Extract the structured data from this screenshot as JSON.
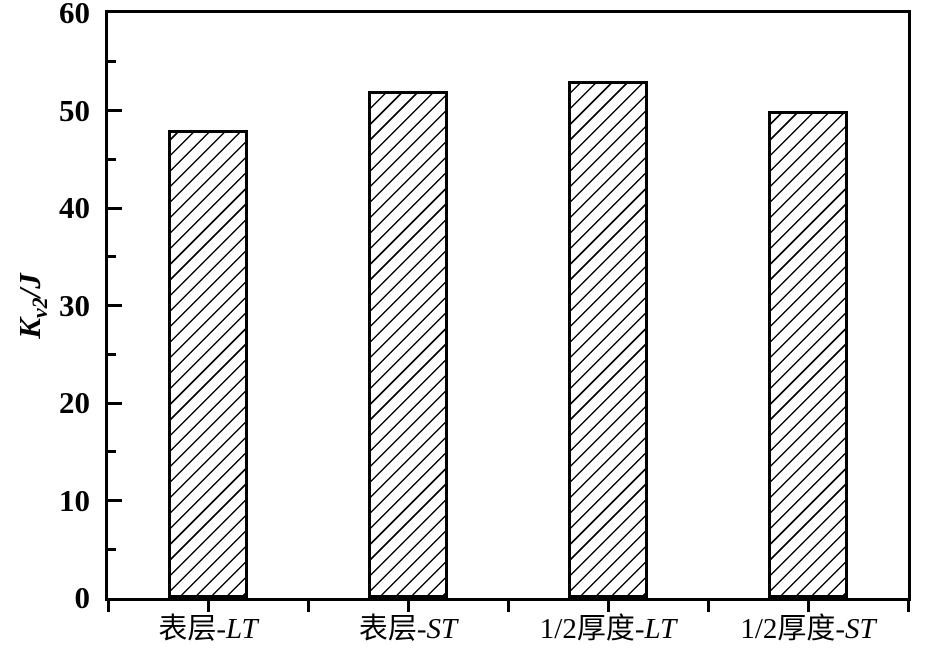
{
  "figure": {
    "background": "#ffffff",
    "axis_color": "#000000"
  },
  "chart_data": {
    "type": "bar",
    "title": "",
    "xlabel": "",
    "ylabel": "Kv2/J",
    "ylabel_parts": {
      "main": "K",
      "sub": "v2",
      "rest": "/J"
    },
    "categories": [
      "表层-LT",
      "表层-ST",
      "1/2厚度-LT",
      "1/2厚度-ST"
    ],
    "category_parts": [
      {
        "prefix": "表层-",
        "suffix": "LT"
      },
      {
        "prefix": "表层-",
        "suffix": "ST"
      },
      {
        "prefix": "1/2厚度-",
        "suffix": "LT"
      },
      {
        "prefix": "1/2厚度-",
        "suffix": "ST"
      }
    ],
    "values": [
      48,
      52,
      53,
      50
    ],
    "ylim": [
      0,
      60
    ],
    "y_major_ticks": [
      0,
      10,
      20,
      30,
      40,
      50,
      60
    ],
    "y_minor_ticks": [
      5,
      15,
      25,
      35,
      45,
      55
    ],
    "x_tick_divisions": 8,
    "grid": false,
    "legend": "none",
    "bar_style": {
      "fill": "#ffffff",
      "hatch": "forward-diagonal",
      "hatch_color": "#000000",
      "border_color": "#000000"
    }
  }
}
